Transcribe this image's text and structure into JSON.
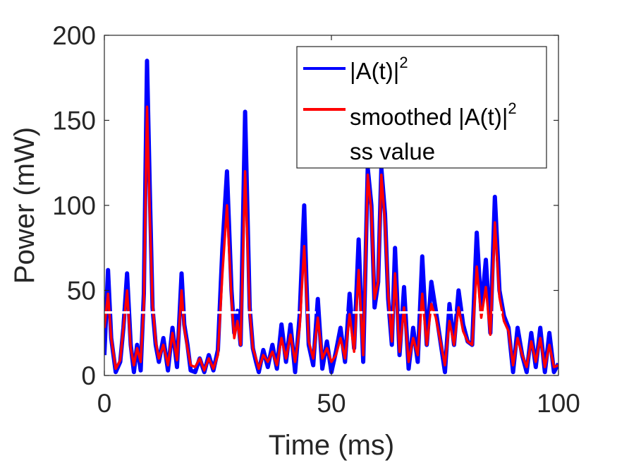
{
  "chart_data": {
    "type": "line",
    "xlabel": "Time (ms)",
    "ylabel": "Power (mW)",
    "xlim": [
      0,
      100
    ],
    "ylim": [
      0,
      200
    ],
    "xticks": [
      0,
      50,
      100
    ],
    "yticks": [
      0,
      50,
      100,
      150,
      200
    ],
    "xtick_labels": [
      "0",
      "50",
      "100"
    ],
    "ytick_labels": [
      "0",
      "50",
      "100",
      "150",
      "200"
    ],
    "grid": false,
    "legend_placement": "top-right",
    "legend": [
      {
        "text": "|A(t)|",
        "sup": "2",
        "color": "#0000FF"
      },
      {
        "text": "smoothed |A(t)|",
        "sup": "2",
        "color": "#FF0000"
      },
      {
        "text": "ss value",
        "sup": "",
        "color": "#FFFFFF"
      }
    ],
    "series": [
      {
        "name": "|A(t)|²",
        "color": "#0000FF",
        "x": [
          0,
          0.8,
          1.5,
          2.5,
          3.5,
          4.2,
          5.0,
          5.8,
          6.5,
          7.2,
          8.0,
          8.7,
          9.4,
          10.0,
          10.6,
          11.3,
          12.0,
          13.0,
          14.0,
          15.0,
          16.0,
          17.0,
          17.6,
          18.3,
          19.0,
          20.0,
          21.0,
          22.0,
          23.0,
          24.0,
          25.0,
          26.0,
          27.0,
          28.0,
          28.6,
          29.3,
          30.0,
          31.0,
          32.0,
          32.7,
          33.4,
          34.0,
          35.0,
          36.0,
          37.0,
          38.0,
          39.0,
          40.0,
          41.0,
          42.0,
          43.0,
          44.0,
          44.5,
          45.0,
          46.0,
          47.0,
          48.0,
          49.0,
          50.0,
          51.0,
          52.0,
          53.0,
          54.0,
          55.0,
          56.0,
          57.0,
          58.0,
          58.8,
          59.5,
          60.3,
          61.0,
          61.8,
          62.5,
          63.3,
          64.0,
          65.0,
          66.0,
          67.0,
          68.0,
          69.0,
          70.0,
          71.0,
          72.0,
          73.0,
          74.0,
          75.0,
          76.0,
          77.0,
          78.0,
          79.0,
          80.0,
          81.0,
          82.0,
          83.0,
          84.0,
          85.0,
          86.0,
          87.0,
          88.0,
          89.0,
          90.0,
          91.0,
          92.0,
          93.0,
          94.0,
          95.0,
          96.0,
          97.0,
          98.0,
          99.0,
          100.0
        ],
        "y": [
          12,
          62,
          22,
          2,
          8,
          28,
          60,
          18,
          2,
          18,
          3,
          48,
          185,
          110,
          40,
          18,
          8,
          22,
          3,
          28,
          5,
          60,
          30,
          18,
          3,
          2,
          10,
          2,
          12,
          3,
          15,
          75,
          120,
          50,
          25,
          38,
          18,
          155,
          40,
          16,
          8,
          2,
          15,
          5,
          18,
          4,
          30,
          8,
          30,
          2,
          35,
          100,
          55,
          18,
          6,
          45,
          4,
          20,
          2,
          14,
          28,
          8,
          48,
          16,
          80,
          8,
          122,
          100,
          40,
          55,
          122,
          95,
          45,
          18,
          75,
          12,
          52,
          4,
          28,
          8,
          70,
          18,
          55,
          38,
          20,
          2,
          42,
          18,
          50,
          30,
          20,
          18,
          84,
          38,
          68,
          25,
          105,
          50,
          35,
          28,
          2,
          28,
          12,
          2,
          25,
          5,
          28,
          2,
          25,
          2,
          7
        ]
      },
      {
        "name": "smoothed |A(t)|²",
        "color": "#FF0000",
        "x": [
          0,
          0.8,
          1.5,
          2.5,
          3.5,
          4.2,
          5.0,
          5.8,
          6.5,
          7.2,
          8.0,
          8.7,
          9.4,
          10.0,
          10.6,
          11.3,
          12.0,
          13.0,
          14.0,
          15.0,
          16.0,
          17.0,
          17.6,
          18.3,
          19.0,
          20.0,
          21.0,
          22.0,
          23.0,
          24.0,
          25.0,
          26.0,
          27.0,
          28.0,
          28.6,
          29.3,
          30.0,
          31.0,
          32.0,
          32.7,
          33.4,
          34.0,
          35.0,
          36.0,
          37.0,
          38.0,
          39.0,
          40.0,
          41.0,
          42.0,
          43.0,
          44.0,
          44.5,
          45.0,
          46.0,
          47.0,
          48.0,
          49.0,
          50.0,
          51.0,
          52.0,
          53.0,
          54.0,
          55.0,
          56.0,
          57.0,
          58.0,
          58.8,
          59.5,
          60.3,
          61.0,
          61.8,
          62.5,
          63.3,
          64.0,
          65.0,
          66.0,
          67.0,
          68.0,
          69.0,
          70.0,
          71.0,
          72.0,
          73.0,
          74.0,
          75.0,
          76.0,
          77.0,
          78.0,
          79.0,
          80.0,
          81.0,
          82.0,
          83.0,
          84.0,
          85.0,
          86.0,
          87.0,
          88.0,
          89.0,
          90.0,
          91.0,
          92.0,
          93.0,
          94.0,
          95.0,
          96.0,
          97.0,
          98.0,
          99.0,
          100.0
        ],
        "y": [
          28,
          48,
          22,
          4,
          9,
          28,
          50,
          16,
          6,
          16,
          8,
          42,
          158,
          95,
          42,
          20,
          10,
          18,
          6,
          25,
          9,
          50,
          28,
          16,
          6,
          5,
          10,
          3,
          10,
          4,
          12,
          60,
          100,
          45,
          22,
          32,
          18,
          120,
          38,
          16,
          10,
          4,
          12,
          8,
          14,
          6,
          22,
          10,
          24,
          8,
          28,
          76,
          48,
          20,
          10,
          34,
          10,
          16,
          8,
          12,
          22,
          10,
          36,
          14,
          62,
          12,
          118,
          96,
          45,
          55,
          118,
          90,
          48,
          20,
          60,
          14,
          40,
          8,
          22,
          12,
          48,
          18,
          42,
          34,
          20,
          6,
          32,
          18,
          40,
          26,
          20,
          18,
          64,
          34,
          52,
          24,
          90,
          46,
          32,
          26,
          6,
          22,
          12,
          5,
          20,
          8,
          22,
          5,
          18,
          5,
          6
        ]
      },
      {
        "name": "ss value",
        "color": "#FFFFFF",
        "dashed": true,
        "x": [
          0,
          100
        ],
        "y": [
          37,
          37
        ]
      }
    ]
  }
}
